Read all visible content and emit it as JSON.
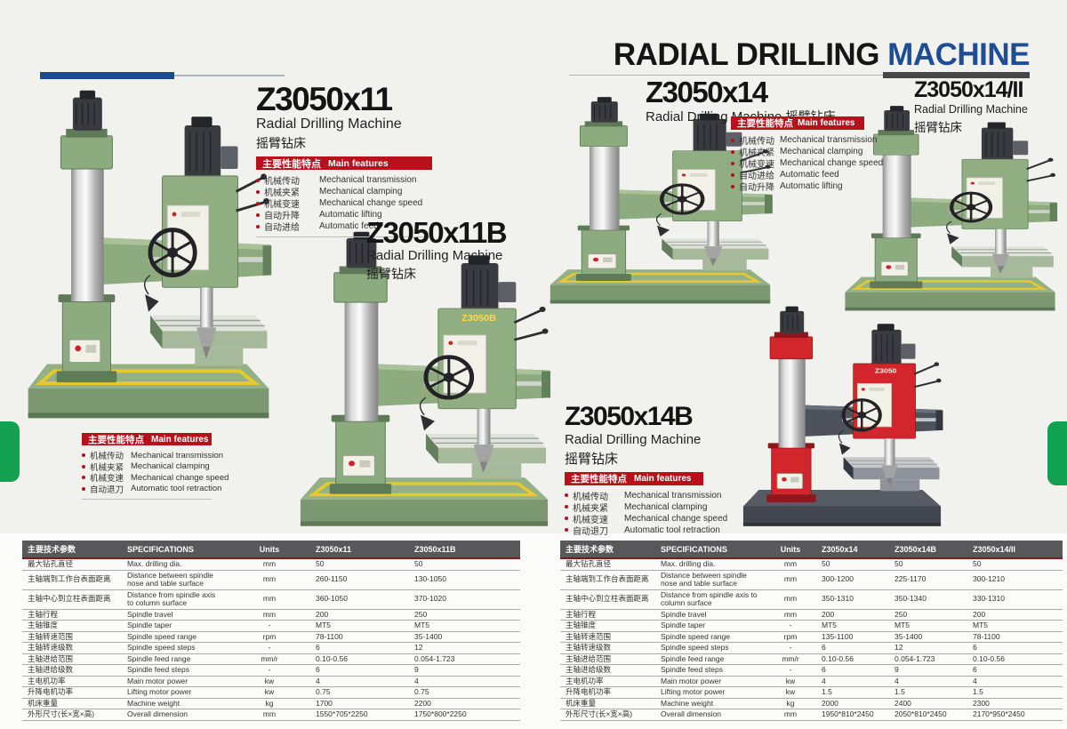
{
  "header": {
    "title_black": "RADIAL DRILLING",
    "title_blue": "MACHINE"
  },
  "features_header": {
    "cn": "主要性能特点",
    "en": "Main features"
  },
  "products": {
    "z3050x11": {
      "model": "Z3050x11",
      "sub_en": "Radial Drilling Machine",
      "sub_cn": "摇臂钻床",
      "features": [
        {
          "cn": "机械传动",
          "en": "Mechanical transmission"
        },
        {
          "cn": "机械夹紧",
          "en": "Mechanical clamping"
        },
        {
          "cn": "机械变速",
          "en": "Mechanical change speed"
        },
        {
          "cn": "自动升降",
          "en": "Automatic lifting"
        },
        {
          "cn": "自动进给",
          "en": "Automatic feed"
        }
      ]
    },
    "z3050x11b": {
      "model": "Z3050x11B",
      "sub_en": "Radial Drilling Machine",
      "sub_cn": "摇臂钻床",
      "photo_label": "Z3050B",
      "features": [
        {
          "cn": "机械传动",
          "en": "Mechanical transmission"
        },
        {
          "cn": "机械夹紧",
          "en": "Mechanical clamping"
        },
        {
          "cn": "机械变速",
          "en": "Mechanical change speed"
        },
        {
          "cn": "自动退刀",
          "en": "Automatic tool retraction"
        }
      ]
    },
    "z3050x14": {
      "model": "Z3050x14",
      "sub_en": "Radial Drilling Machine",
      "sub_cn": "摇臂钻床",
      "features": [
        {
          "cn": "机械传动",
          "en": "Mechanical transmission"
        },
        {
          "cn": "机械夹紧",
          "en": "Mechanical clamping"
        },
        {
          "cn": "机械变速",
          "en": "Mechanical change speed"
        },
        {
          "cn": "自动进给",
          "en": "Automatic feed"
        },
        {
          "cn": "自动升降",
          "en": "Automatic lifting"
        }
      ]
    },
    "z3050x14ii": {
      "model": "Z3050x14/II",
      "sub_en": "Radial Drilling Machine",
      "sub_cn": "摇臂钻床"
    },
    "z3050x14b": {
      "model": "Z3050x14B",
      "sub_en": "Radial Drilling Machine",
      "sub_cn": "摇臂钻床",
      "photo_label": "Z3050",
      "features": [
        {
          "cn": "机械传动",
          "en": "Mechanical transmission"
        },
        {
          "cn": "机械夹紧",
          "en": "Mechanical clamping"
        },
        {
          "cn": "机械变速",
          "en": "Mechanical change speed"
        },
        {
          "cn": "自动退刀",
          "en": "Automatic tool retraction"
        }
      ]
    }
  },
  "tables": {
    "left": {
      "headers": {
        "param_cn": "主要技术参数",
        "spec": "SPECIFICATIONS",
        "units": "Units",
        "models": [
          "Z3050x11",
          "Z3050x11B"
        ]
      },
      "rows": [
        {
          "cn": "最大钻孔直径",
          "spec": "Max. drilling dia.",
          "unit": "mm",
          "values": [
            "50",
            "50"
          ]
        },
        {
          "cn": "主轴端到工作台表面距离",
          "spec": "Distance between spindle nose and table surface",
          "unit": "mm",
          "values": [
            "260-1150",
            "130-1050"
          ]
        },
        {
          "cn": "主轴中心到立柱表面距离",
          "spec": "Distance from spindle axis to column surface",
          "unit": "mm",
          "values": [
            "360-1050",
            "370-1020"
          ]
        },
        {
          "cn": "主轴行程",
          "spec": "Spindle travel",
          "unit": "mm",
          "values": [
            "200",
            "250"
          ]
        },
        {
          "cn": "主轴锥度",
          "spec": "Spindle taper",
          "unit": "-",
          "values": [
            "MT5",
            "MT5"
          ]
        },
        {
          "cn": "主轴转速范围",
          "spec": "Spindle speed range",
          "unit": "rpm",
          "values": [
            "78-1100",
            "35-1400"
          ]
        },
        {
          "cn": "主轴转速级数",
          "spec": "Spindle speed steps",
          "unit": "-",
          "values": [
            "6",
            "12"
          ]
        },
        {
          "cn": "主轴进给范围",
          "spec": "Spindle feed range",
          "unit": "mm/r",
          "values": [
            "0.10-0.56",
            "0.054-1.723"
          ]
        },
        {
          "cn": "主轴进给级数",
          "spec": "Spindle feed steps",
          "unit": "-",
          "values": [
            "6",
            "9"
          ]
        },
        {
          "cn": "主电机功率",
          "spec": "Main motor power",
          "unit": "kw",
          "values": [
            "4",
            "4"
          ]
        },
        {
          "cn": "升降电机功率",
          "spec": "Lifting motor power",
          "unit": "kw",
          "values": [
            "0.75",
            "0.75"
          ]
        },
        {
          "cn": "机床重量",
          "spec": "Machine weight",
          "unit": "kg",
          "values": [
            "1700",
            "2200"
          ]
        },
        {
          "cn": "外形尺寸(长×宽×高)",
          "spec": "Overall dimension",
          "unit": "mm",
          "values": [
            "1550*705*2250",
            "1750*800*2250"
          ]
        }
      ]
    },
    "right": {
      "headers": {
        "param_cn": "主要技术参数",
        "spec": "SPECIFICATIONS",
        "units": "Units",
        "models": [
          "Z3050x14",
          "Z3050x14B",
          "Z3050x14/II"
        ]
      },
      "rows": [
        {
          "cn": "最大钻孔直径",
          "spec": "Max. drilling dia.",
          "unit": "mm",
          "values": [
            "50",
            "50",
            "50"
          ]
        },
        {
          "cn": "主轴端到工作台表面距离",
          "spec": "Distance between spindle nose and table surface",
          "unit": "mm",
          "values": [
            "300-1200",
            "225-1170",
            "300-1210"
          ]
        },
        {
          "cn": "主轴中心到立柱表面距离",
          "spec": "Distance from spindle axis to column surface",
          "unit": "mm",
          "values": [
            "350-1310",
            "350-1340",
            "330-1310"
          ]
        },
        {
          "cn": "主轴行程",
          "spec": "Spindle travel",
          "unit": "mm",
          "values": [
            "200",
            "250",
            "200"
          ]
        },
        {
          "cn": "主轴锥度",
          "spec": "Spindle taper",
          "unit": "-",
          "values": [
            "MT5",
            "MT5",
            "MT5"
          ]
        },
        {
          "cn": "主轴转速范围",
          "spec": "Spindle speed range",
          "unit": "rpm",
          "values": [
            "135-1100",
            "35-1400",
            "78-1100"
          ]
        },
        {
          "cn": "主轴转速级数",
          "spec": "Spindle speed steps",
          "unit": "-",
          "values": [
            "6",
            "12",
            "6"
          ]
        },
        {
          "cn": "主轴进给范围",
          "spec": "Spindle feed range",
          "unit": "mm/r",
          "values": [
            "0.10-0.56",
            "0.054-1.723",
            "0.10-0.56"
          ]
        },
        {
          "cn": "主轴进给级数",
          "spec": "Spindle feed steps",
          "unit": "-",
          "values": [
            "6",
            "9",
            "6"
          ]
        },
        {
          "cn": "主电机功率",
          "spec": "Main motor power",
          "unit": "kw",
          "values": [
            "4",
            "4",
            "4"
          ]
        },
        {
          "cn": "升降电机功率",
          "spec": "Lifting motor power",
          "unit": "kw",
          "values": [
            "1.5",
            "1.5",
            "1.5"
          ]
        },
        {
          "cn": "机床重量",
          "spec": "Machine weight",
          "unit": "kg",
          "values": [
            "2000",
            "2400",
            "2300"
          ]
        },
        {
          "cn": "外形尺寸(长×宽×高)",
          "spec": "Overall dimension",
          "unit": "mm",
          "values": [
            "1950*810*2450",
            "2050*810*2450",
            "2170*950*2450"
          ]
        }
      ]
    }
  },
  "colors": {
    "accent_red": "#b8111c",
    "title_blue": "#1d4d94",
    "header_bar_blue": "#1b4a8f",
    "table_header_gray": "#58585b",
    "table_rule_red": "#8c1418",
    "green_tab": "#12a150",
    "machine_green": "#8dab7f",
    "machine_red": "#d2252c"
  }
}
